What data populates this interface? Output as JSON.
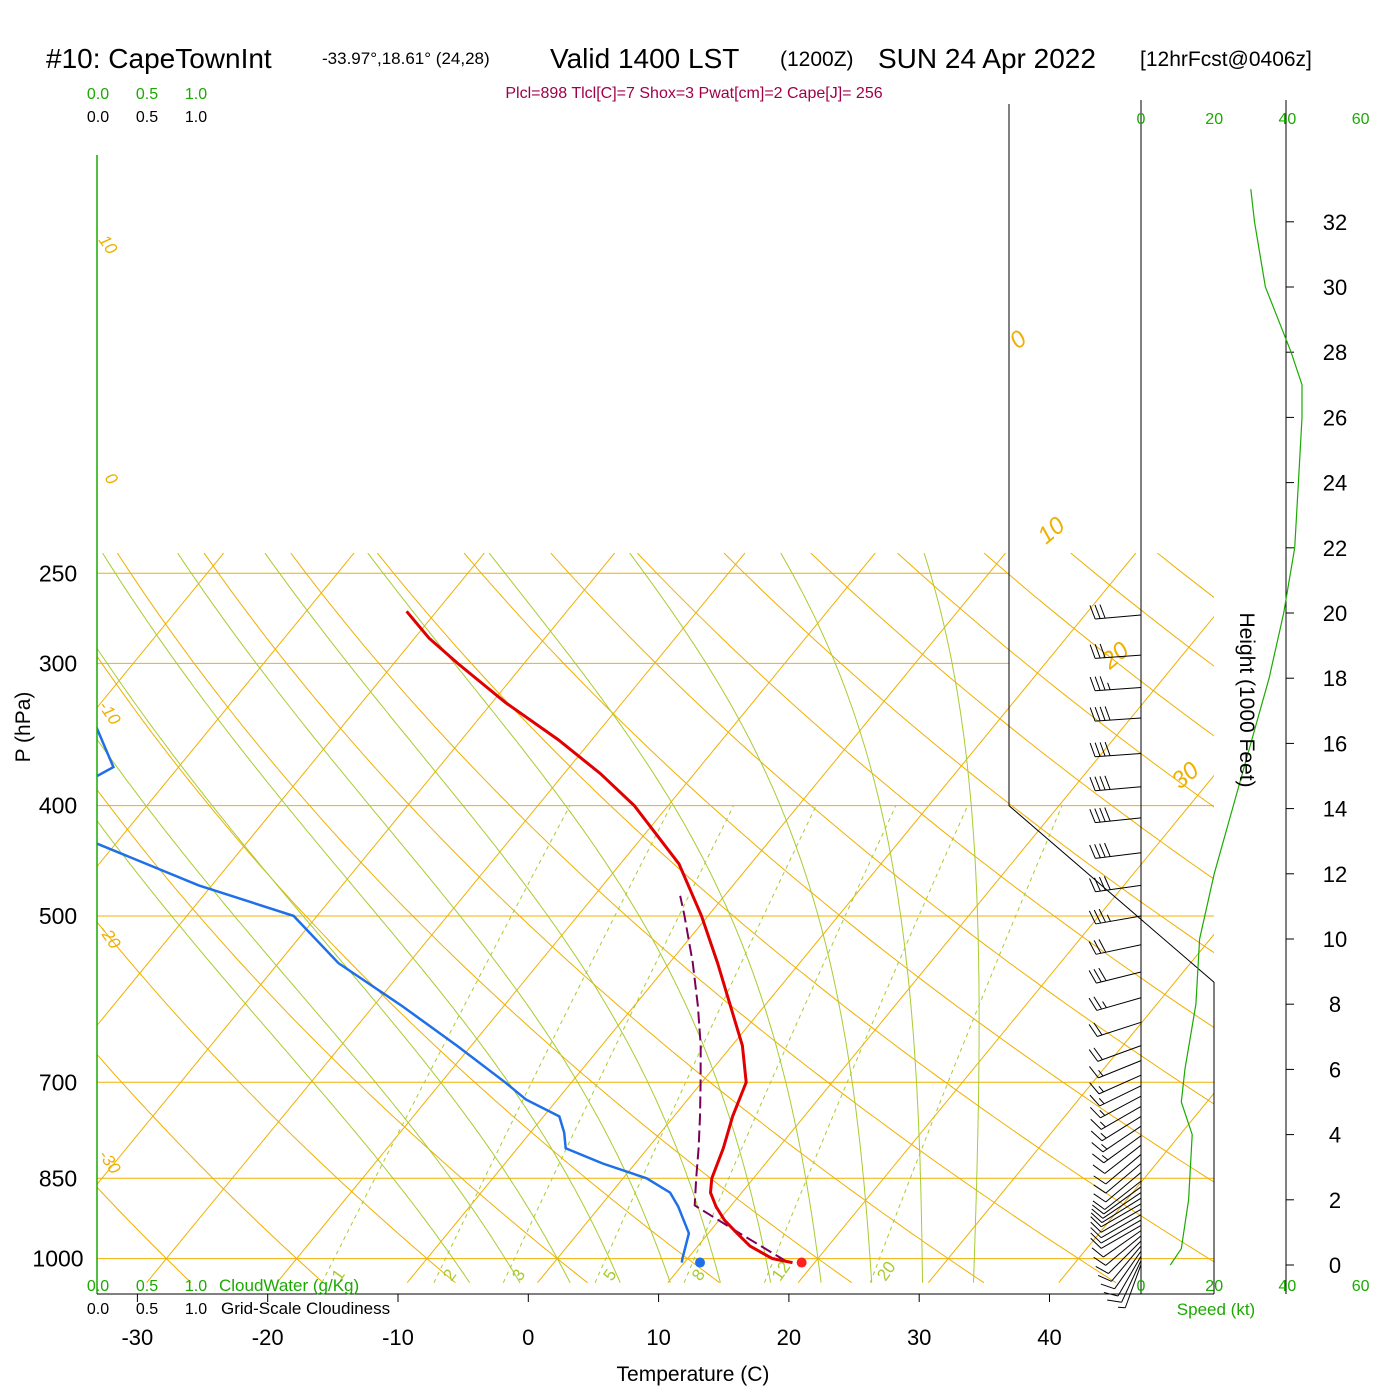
{
  "header": {
    "station": "#10: CapeTownInt",
    "coords": "-33.97°,18.61° (24,28)",
    "valid": "Valid 1400 LST",
    "zulu": "(1200Z)",
    "date": "SUN 24 Apr 2022",
    "forecast": "[12hrFcst@0406z]",
    "indices": "Plcl=898 Tlcl[C]=7 Shox=3 Pwat[cm]=2 Cape[J]= 256"
  },
  "colors": {
    "temperature": "#e00000",
    "dewpoint": "#1e6fe8",
    "parcel": "#7a005a",
    "isotherm": "#f0b000",
    "dry_adiabat": "#f0b000",
    "moist_adiabat": "#a8cc30",
    "mixing_ratio": "#a8cc30",
    "wind_speed_profile": "#1aaa00",
    "green_text": "#1aaa00",
    "index_text": "#a0004a"
  },
  "chart_data": {
    "type": "skew-t log-p sounding",
    "xlabel": "Temperature (C)",
    "ylabel": "P (hPa)",
    "right_axis_label": "Height (1000 Feet)",
    "speed_label": "Speed (kt)",
    "x_ticks": [
      "-30",
      "-20",
      "-10",
      "0",
      "10",
      "20",
      "30",
      "40"
    ],
    "x_tick_values": [
      -30,
      -20,
      -10,
      0,
      10,
      20,
      30,
      40
    ],
    "pressure_ticks": [
      "250",
      "300",
      "400",
      "500",
      "700",
      "850",
      "1000"
    ],
    "pressure_tick_values": [
      250,
      300,
      400,
      500,
      700,
      850,
      1000
    ],
    "height_ticks": [
      "32",
      "30",
      "28",
      "26",
      "24",
      "22",
      "20",
      "18",
      "16",
      "14",
      "12",
      "10",
      "8",
      "6",
      "4",
      "2",
      "0"
    ],
    "height_tick_values": [
      32,
      30,
      28,
      26,
      24,
      22,
      20,
      18,
      16,
      14,
      12,
      10,
      8,
      6,
      4,
      2,
      0
    ],
    "speed_ticks": [
      "0",
      "20",
      "40",
      "60"
    ],
    "speed_tick_values": [
      0,
      20,
      40,
      60
    ],
    "cloud_scale_ticks": [
      "0.0",
      "0.5",
      "1.0"
    ],
    "cloudwater_label": "CloudWater (g/Kg)",
    "cloudiness_label": "Grid-Scale Cloudiness",
    "isotherm_labels": [
      {
        "text": "10",
        "t": 10
      },
      {
        "text": "0",
        "t": 0
      },
      {
        "text": "-10",
        "t": -10
      },
      {
        "text": "-20",
        "t": -20
      },
      {
        "text": "-30",
        "t": -30
      },
      {
        "text": "0",
        "t": 0
      },
      {
        "text": "10",
        "t": 10
      },
      {
        "text": "20",
        "t": 20
      },
      {
        "text": "30",
        "t": 30
      }
    ],
    "mixing_ratio_labels": [
      {
        "text": "1",
        "w": 1
      },
      {
        "text": "2",
        "w": 2
      },
      {
        "text": "3",
        "w": 3
      },
      {
        "text": "5",
        "w": 5
      },
      {
        "text": "8",
        "w": 8
      },
      {
        "text": "12",
        "w": 12
      },
      {
        "text": "20",
        "w": 20
      }
    ],
    "isotherm_values": [
      -110,
      -100,
      -90,
      -80,
      -70,
      -60,
      -50,
      -40,
      -30,
      -20,
      -10,
      0,
      10,
      20,
      30,
      40
    ],
    "dry_adiabat_theta_c": [
      -30,
      -20,
      -10,
      0,
      10,
      20,
      30,
      40,
      50,
      60,
      70,
      80,
      90,
      100,
      110,
      120,
      130,
      140
    ],
    "moist_adiabat_start_c": [
      -8,
      -4,
      0,
      4,
      8,
      12,
      16,
      20,
      24,
      28,
      32
    ],
    "mixing_ratio_values": [
      1,
      2,
      3,
      5,
      8,
      12,
      20
    ],
    "temperature": [
      {
        "p": 1008,
        "t": 18.3
      },
      {
        "p": 1000,
        "t": 16.5
      },
      {
        "p": 975,
        "t": 14.0
      },
      {
        "p": 950,
        "t": 12.2
      },
      {
        "p": 925,
        "t": 10.4
      },
      {
        "p": 900,
        "t": 8.9
      },
      {
        "p": 875,
        "t": 7.6
      },
      {
        "p": 850,
        "t": 6.8
      },
      {
        "p": 800,
        "t": 5.8
      },
      {
        "p": 750,
        "t": 4.5
      },
      {
        "p": 700,
        "t": 3.4
      },
      {
        "p": 650,
        "t": 0.8
      },
      {
        "p": 600,
        "t": -2.6
      },
      {
        "p": 550,
        "t": -6.3
      },
      {
        "p": 500,
        "t": -10.5
      },
      {
        "p": 450,
        "t": -15.5
      },
      {
        "p": 400,
        "t": -22.6
      },
      {
        "p": 375,
        "t": -27.2
      },
      {
        "p": 350,
        "t": -32.6
      },
      {
        "p": 325,
        "t": -38.9
      },
      {
        "p": 300,
        "t": -45.1
      },
      {
        "p": 285,
        "t": -48.9
      },
      {
        "p": 270,
        "t": -52.3
      }
    ],
    "dewpoint": [
      {
        "p": 1008,
        "t": 9.8
      },
      {
        "p": 1000,
        "t": 9.6
      },
      {
        "p": 950,
        "t": 8.5
      },
      {
        "p": 900,
        "t": 6.0
      },
      {
        "p": 875,
        "t": 4.5
      },
      {
        "p": 850,
        "t": 1.8
      },
      {
        "p": 825,
        "t": -2.5
      },
      {
        "p": 800,
        "t": -6.3
      },
      {
        "p": 775,
        "t": -7.4
      },
      {
        "p": 750,
        "t": -8.8
      },
      {
        "p": 725,
        "t": -12.4
      },
      {
        "p": 700,
        "t": -15.1
      },
      {
        "p": 650,
        "t": -21.1
      },
      {
        "p": 600,
        "t": -27.8
      },
      {
        "p": 550,
        "t": -35.4
      },
      {
        "p": 500,
        "t": -41.8
      },
      {
        "p": 470,
        "t": -51.0
      },
      {
        "p": 430,
        "t": -62.0
      },
      {
        "p": 400,
        "t": -68.0
      },
      {
        "p": 370,
        "t": -65.0
      },
      {
        "p": 340,
        "t": -69.0
      },
      {
        "p": 300,
        "t": -73.0
      },
      {
        "p": 270,
        "t": -76.5
      }
    ],
    "parcel": [
      {
        "p": 1005,
        "t": 17.7
      },
      {
        "p": 950,
        "t": 12.4
      },
      {
        "p": 898,
        "t": 7.2
      },
      {
        "p": 850,
        "t": 5.6
      },
      {
        "p": 800,
        "t": 3.9
      },
      {
        "p": 750,
        "t": 2.0
      },
      {
        "p": 700,
        "t": -0.1
      },
      {
        "p": 650,
        "t": -2.4
      },
      {
        "p": 600,
        "t": -5.1
      },
      {
        "p": 550,
        "t": -8.2
      },
      {
        "p": 500,
        "t": -11.8
      },
      {
        "p": 480,
        "t": -13.4
      }
    ],
    "surface_temperature": {
      "p": 1008,
      "t": 19.0
    },
    "surface_dewpoint": {
      "p": 1008,
      "t": 11.2
    },
    "wind_speed_profile": [
      {
        "h": 0,
        "spd": 8
      },
      {
        "h": 0.5,
        "spd": 11
      },
      {
        "h": 2,
        "spd": 13
      },
      {
        "h": 4,
        "spd": 14
      },
      {
        "h": 5,
        "spd": 11
      },
      {
        "h": 6,
        "spd": 12
      },
      {
        "h": 8,
        "spd": 15
      },
      {
        "h": 10,
        "spd": 16
      },
      {
        "h": 12,
        "spd": 20
      },
      {
        "h": 14,
        "spd": 25
      },
      {
        "h": 16,
        "spd": 30
      },
      {
        "h": 18,
        "spd": 35
      },
      {
        "h": 20,
        "spd": 39
      },
      {
        "h": 22,
        "spd": 42
      },
      {
        "h": 24,
        "spd": 43
      },
      {
        "h": 26,
        "spd": 44
      },
      {
        "h": 27,
        "spd": 44
      },
      {
        "h": 28,
        "spd": 41
      },
      {
        "h": 30,
        "spd": 34
      },
      {
        "h": 32,
        "spd": 31
      },
      {
        "h": 33,
        "spd": 30
      }
    ],
    "wind_barbs": [
      {
        "p": 1012,
        "dir": 200,
        "spd": 8
      },
      {
        "p": 1004,
        "dir": 205,
        "spd": 10
      },
      {
        "p": 995,
        "dir": 210,
        "spd": 10
      },
      {
        "p": 985,
        "dir": 215,
        "spd": 11
      },
      {
        "p": 975,
        "dir": 220,
        "spd": 12
      },
      {
        "p": 965,
        "dir": 225,
        "spd": 12
      },
      {
        "p": 955,
        "dir": 230,
        "spd": 13
      },
      {
        "p": 945,
        "dir": 235,
        "spd": 13
      },
      {
        "p": 935,
        "dir": 240,
        "spd": 13
      },
      {
        "p": 925,
        "dir": 240,
        "spd": 14
      },
      {
        "p": 915,
        "dir": 240,
        "spd": 14
      },
      {
        "p": 905,
        "dir": 240,
        "spd": 14
      },
      {
        "p": 895,
        "dir": 240,
        "spd": 14
      },
      {
        "p": 885,
        "dir": 238,
        "spd": 13
      },
      {
        "p": 875,
        "dir": 236,
        "spd": 12
      },
      {
        "p": 865,
        "dir": 234,
        "spd": 12
      },
      {
        "p": 855,
        "dir": 232,
        "spd": 11
      },
      {
        "p": 840,
        "dir": 230,
        "spd": 11
      },
      {
        "p": 825,
        "dir": 230,
        "spd": 12
      },
      {
        "p": 810,
        "dir": 230,
        "spd": 13
      },
      {
        "p": 795,
        "dir": 232,
        "spd": 14
      },
      {
        "p": 780,
        "dir": 234,
        "spd": 15
      },
      {
        "p": 765,
        "dir": 236,
        "spd": 15
      },
      {
        "p": 750,
        "dir": 238,
        "spd": 16
      },
      {
        "p": 735,
        "dir": 240,
        "spd": 16
      },
      {
        "p": 720,
        "dir": 242,
        "spd": 17
      },
      {
        "p": 705,
        "dir": 244,
        "spd": 17
      },
      {
        "p": 690,
        "dir": 246,
        "spd": 18
      },
      {
        "p": 670,
        "dir": 248,
        "spd": 19
      },
      {
        "p": 650,
        "dir": 250,
        "spd": 21
      },
      {
        "p": 620,
        "dir": 252,
        "spd": 24
      },
      {
        "p": 590,
        "dir": 254,
        "spd": 27
      },
      {
        "p": 560,
        "dir": 256,
        "spd": 30
      },
      {
        "p": 530,
        "dir": 258,
        "spd": 34
      },
      {
        "p": 500,
        "dir": 260,
        "spd": 37
      },
      {
        "p": 470,
        "dir": 262,
        "spd": 40
      },
      {
        "p": 440,
        "dir": 263,
        "spd": 42
      },
      {
        "p": 410,
        "dir": 264,
        "spd": 43
      },
      {
        "p": 385,
        "dir": 265,
        "spd": 44
      },
      {
        "p": 360,
        "dir": 266,
        "spd": 44
      },
      {
        "p": 335,
        "dir": 266,
        "spd": 41
      },
      {
        "p": 315,
        "dir": 266,
        "spd": 37
      },
      {
        "p": 295,
        "dir": 266,
        "spd": 34
      },
      {
        "p": 272,
        "dir": 265,
        "spd": 31
      }
    ]
  }
}
